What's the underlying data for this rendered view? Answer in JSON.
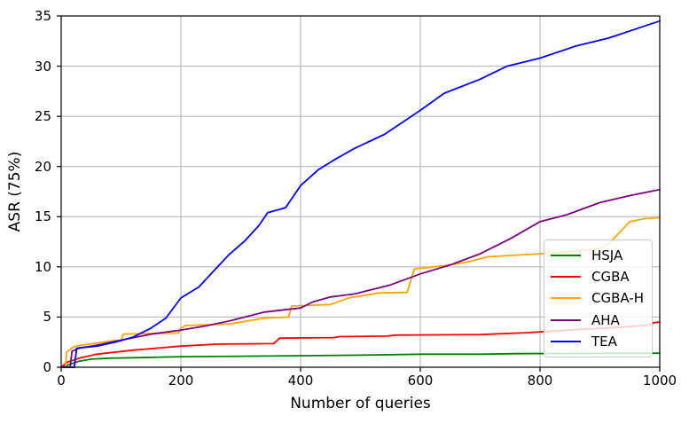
{
  "chart_data": {
    "type": "line",
    "title": "",
    "xlabel": "Number of queries",
    "ylabel": "ASR (75%)",
    "xlim": [
      0,
      1000
    ],
    "ylim": [
      0,
      35
    ],
    "xticks": [
      0,
      200,
      400,
      600,
      800,
      1000
    ],
    "yticks": [
      0,
      5,
      10,
      15,
      20,
      25,
      30,
      35
    ],
    "grid": true,
    "grid_color": "#b0b0b0",
    "legend": {
      "position": "lower-right-inside",
      "entries": [
        "HSJA",
        "CGBA",
        "CGBA-H",
        "AHA",
        "TEA"
      ]
    },
    "series": [
      {
        "name": "HSJA",
        "color": "#008000",
        "x": [
          0,
          15,
          30,
          50,
          80,
          120,
          200,
          300,
          400,
          500,
          600,
          700,
          760,
          1000
        ],
        "y": [
          0,
          0.3,
          0.6,
          0.8,
          0.9,
          0.95,
          1.05,
          1.1,
          1.15,
          1.2,
          1.3,
          1.3,
          1.35,
          1.4
        ]
      },
      {
        "name": "CGBA",
        "color": "#ff0000",
        "x": [
          0,
          10,
          30,
          60,
          90,
          120,
          160,
          200,
          260,
          355,
          365,
          455,
          465,
          545,
          558,
          700,
          780,
          860,
          940,
          983,
          990,
          1000
        ],
        "y": [
          0,
          0.5,
          0.9,
          1.3,
          1.5,
          1.7,
          1.9,
          2.1,
          2.3,
          2.35,
          2.9,
          2.95,
          3.05,
          3.1,
          3.2,
          3.25,
          3.45,
          3.75,
          4.0,
          4.2,
          4.45,
          4.5
        ]
      },
      {
        "name": "CGBA-H",
        "color": "#ffa500",
        "x": [
          0,
          7,
          9,
          20,
          28,
          60,
          80,
          100,
          104,
          140,
          196,
          200,
          208,
          280,
          340,
          380,
          385,
          450,
          480,
          530,
          578,
          590,
          640,
          680,
          712,
          800,
          850,
          905,
          915,
          950,
          975,
          1000
        ],
        "y": [
          0,
          0,
          1.5,
          2.0,
          2.15,
          2.4,
          2.6,
          2.7,
          3.3,
          3.35,
          3.4,
          3.9,
          4.15,
          4.3,
          4.9,
          5.0,
          6.1,
          6.25,
          6.9,
          7.4,
          7.45,
          9.8,
          10.1,
          10.5,
          11.0,
          11.3,
          11.5,
          11.9,
          12.3,
          14.5,
          14.8,
          14.9
        ]
      },
      {
        "name": "AHA",
        "color": "#800080",
        "x": [
          0,
          15,
          18,
          30,
          60,
          100,
          150,
          200,
          240,
          280,
          340,
          400,
          420,
          450,
          490,
          550,
          600,
          650,
          700,
          750,
          800,
          845,
          900,
          950,
          1000
        ],
        "y": [
          0,
          0,
          1.6,
          1.9,
          2.2,
          2.7,
          3.3,
          3.7,
          4.1,
          4.6,
          5.5,
          5.9,
          6.5,
          7.0,
          7.3,
          8.2,
          9.3,
          10.2,
          11.3,
          12.8,
          14.5,
          15.2,
          16.4,
          17.1,
          17.7
        ]
      },
      {
        "name": "TEA",
        "color": "#0000ff",
        "x": [
          0,
          22,
          26,
          60,
          90,
          120,
          150,
          175,
          200,
          230,
          255,
          280,
          307,
          330,
          345,
          375,
          400,
          430,
          460,
          490,
          540,
          560,
          600,
          640,
          700,
          745,
          800,
          860,
          915,
          960,
          1000
        ],
        "y": [
          0,
          0,
          1.9,
          2.1,
          2.5,
          3.0,
          3.9,
          4.9,
          6.9,
          8.0,
          9.6,
          11.2,
          12.6,
          14.1,
          15.4,
          15.9,
          18.1,
          19.7,
          20.8,
          21.8,
          23.2,
          24.0,
          25.6,
          27.3,
          28.7,
          30.0,
          30.8,
          32.0,
          32.8,
          33.7,
          34.5
        ]
      }
    ]
  }
}
